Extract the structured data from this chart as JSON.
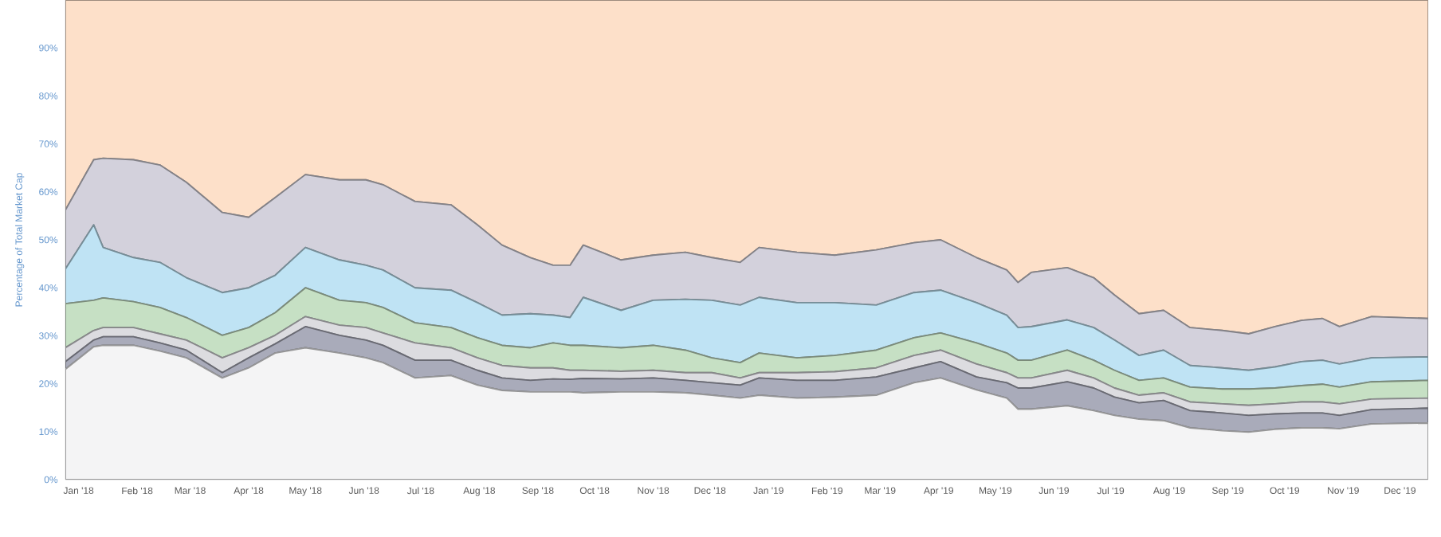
{
  "chart_data": {
    "type": "area",
    "stacked": true,
    "ylabel": "Percentage of Total Market Cap",
    "x": [
      "2017-12-25",
      "2018-01-09",
      "2018-01-14",
      "2018-01-30",
      "2018-02-13",
      "2018-02-27",
      "2018-03-18",
      "2018-04-01",
      "2018-04-15",
      "2018-05-01",
      "2018-05-19",
      "2018-06-02",
      "2018-06-11",
      "2018-06-28",
      "2018-07-17",
      "2018-07-31",
      "2018-08-13",
      "2018-08-28",
      "2018-09-09",
      "2018-09-18",
      "2018-09-25",
      "2018-10-15",
      "2018-11-01",
      "2018-11-18",
      "2018-12-02",
      "2018-12-17",
      "2018-12-27",
      "2019-01-16",
      "2019-02-05",
      "2019-02-27",
      "2019-03-19",
      "2019-04-02",
      "2019-04-21",
      "2019-05-07",
      "2019-05-13",
      "2019-05-20",
      "2019-06-08",
      "2019-06-22",
      "2019-07-03",
      "2019-07-16",
      "2019-07-29",
      "2019-08-12",
      "2019-08-29",
      "2019-09-12",
      "2019-09-26",
      "2019-10-10",
      "2019-10-21",
      "2019-10-30",
      "2019-11-16",
      "2019-12-16"
    ],
    "series": [
      {
        "color": "#f4f4f5",
        "values": [
          23.0,
          27.7,
          28.0,
          28.0,
          26.8,
          25.4,
          21.2,
          23.3,
          26.4,
          27.5,
          26.4,
          25.4,
          24.4,
          21.2,
          21.7,
          19.7,
          18.6,
          18.3,
          18.3,
          18.3,
          18.1,
          18.3,
          18.3,
          18.1,
          17.6,
          17.0,
          17.6,
          17.0,
          17.2,
          17.6,
          20.2,
          21.2,
          18.7,
          17.0,
          14.7,
          14.7,
          15.4,
          14.4,
          13.4,
          12.6,
          12.3,
          10.8,
          10.2,
          9.9,
          10.5,
          10.8,
          10.8,
          10.6,
          11.6,
          11.8
        ]
      },
      {
        "color": "#a9abba",
        "values": [
          1.6,
          1.4,
          1.8,
          1.8,
          1.7,
          1.6,
          1.1,
          2.1,
          1.9,
          4.4,
          3.7,
          3.7,
          3.6,
          3.7,
          3.2,
          3.1,
          2.6,
          2.4,
          2.7,
          2.6,
          3.0,
          2.7,
          2.9,
          2.6,
          2.6,
          2.7,
          3.6,
          3.7,
          3.5,
          3.8,
          3.1,
          3.4,
          2.7,
          3.2,
          4.4,
          4.4,
          5.0,
          4.7,
          3.8,
          3.4,
          4.2,
          3.6,
          3.7,
          3.5,
          3.2,
          3.1,
          3.1,
          2.8,
          3.0,
          3.1
        ]
      },
      {
        "color": "#dcdce0",
        "values": [
          2.9,
          2.0,
          1.9,
          1.9,
          1.9,
          2.1,
          3.1,
          2.1,
          1.8,
          2.1,
          2.1,
          2.6,
          2.6,
          3.6,
          2.6,
          2.6,
          2.6,
          2.6,
          2.3,
          1.9,
          1.7,
          1.6,
          1.6,
          1.6,
          2.1,
          1.5,
          1.1,
          1.6,
          1.8,
          1.9,
          2.6,
          2.4,
          2.7,
          2.1,
          2.1,
          2.1,
          2.4,
          2.1,
          1.9,
          1.6,
          1.6,
          1.8,
          1.9,
          2.1,
          2.1,
          2.3,
          2.3,
          2.4,
          2.2,
          2.1
        ]
      },
      {
        "color": "#c6e0c4",
        "values": [
          9.2,
          6.3,
          6.2,
          5.4,
          5.5,
          4.7,
          4.7,
          4.2,
          4.7,
          6.0,
          5.2,
          5.2,
          5.3,
          4.2,
          4.2,
          4.2,
          4.2,
          4.2,
          5.2,
          5.2,
          5.2,
          4.9,
          5.2,
          4.7,
          3.1,
          3.2,
          4.1,
          3.1,
          3.4,
          3.7,
          3.7,
          3.6,
          4.4,
          4.1,
          3.7,
          3.7,
          4.2,
          3.7,
          3.7,
          3.1,
          3.1,
          3.1,
          3.1,
          3.4,
          3.3,
          3.4,
          3.7,
          3.5,
          3.6,
          3.7
        ]
      },
      {
        "color": "#bfe3f4",
        "values": [
          7.2,
          15.7,
          10.5,
          9.2,
          9.4,
          8.3,
          8.9,
          8.3,
          7.8,
          8.4,
          8.4,
          7.8,
          7.8,
          7.3,
          7.8,
          7.3,
          6.3,
          7.1,
          5.8,
          5.8,
          10.0,
          7.8,
          9.4,
          10.6,
          12.0,
          12.0,
          11.6,
          11.5,
          11.0,
          9.4,
          9.4,
          8.9,
          8.4,
          7.9,
          6.8,
          7.0,
          6.3,
          6.8,
          6.3,
          5.2,
          5.8,
          4.5,
          4.4,
          3.9,
          4.4,
          5.0,
          5.0,
          4.8,
          5.0,
          4.9
        ]
      },
      {
        "color": "#d3d1dc",
        "values": [
          12.3,
          13.6,
          18.6,
          20.4,
          20.3,
          19.9,
          16.7,
          14.7,
          16.2,
          15.2,
          16.7,
          17.8,
          17.8,
          18.0,
          17.8,
          16.2,
          14.6,
          11.7,
          10.4,
          10.9,
          10.9,
          10.5,
          9.4,
          9.8,
          8.9,
          8.9,
          10.4,
          10.5,
          9.9,
          11.5,
          10.4,
          10.5,
          9.4,
          9.4,
          9.4,
          11.3,
          10.9,
          10.4,
          9.4,
          8.7,
          8.3,
          7.9,
          7.8,
          7.6,
          8.4,
          8.6,
          8.7,
          7.8,
          8.6,
          8.0
        ]
      },
      {
        "color": "#fde0c9",
        "values": [
          43.8,
          33.3,
          33.0,
          33.3,
          34.4,
          38.0,
          44.3,
          45.3,
          41.2,
          36.4,
          37.5,
          37.5,
          38.5,
          42.0,
          42.7,
          46.9,
          51.1,
          53.7,
          55.3,
          55.3,
          51.1,
          54.2,
          53.2,
          52.6,
          53.7,
          54.7,
          51.6,
          52.6,
          53.2,
          52.1,
          50.6,
          50.0,
          53.7,
          56.3,
          58.9,
          56.8,
          55.8,
          57.9,
          61.5,
          65.4,
          64.7,
          68.3,
          68.9,
          69.6,
          68.1,
          66.8,
          66.4,
          68.1,
          66.0,
          66.4
        ]
      }
    ],
    "xlim": [
      "2017-12-25",
      "2019-12-16"
    ],
    "xticks": [
      {
        "value": "2018-01-01",
        "label": "Jan '18"
      },
      {
        "value": "2018-02-01",
        "label": "Feb '18"
      },
      {
        "value": "2018-03-01",
        "label": "Mar '18"
      },
      {
        "value": "2018-04-01",
        "label": "Apr '18"
      },
      {
        "value": "2018-05-01",
        "label": "May '18"
      },
      {
        "value": "2018-06-01",
        "label": "Jun '18"
      },
      {
        "value": "2018-07-01",
        "label": "Jul '18"
      },
      {
        "value": "2018-08-01",
        "label": "Aug '18"
      },
      {
        "value": "2018-09-01",
        "label": "Sep '18"
      },
      {
        "value": "2018-10-01",
        "label": "Oct '18"
      },
      {
        "value": "2018-11-01",
        "label": "Nov '18"
      },
      {
        "value": "2018-12-01",
        "label": "Dec '18"
      },
      {
        "value": "2019-01-01",
        "label": "Jan '19"
      },
      {
        "value": "2019-02-01",
        "label": "Feb '19"
      },
      {
        "value": "2019-03-01",
        "label": "Mar '19"
      },
      {
        "value": "2019-04-01",
        "label": "Apr '19"
      },
      {
        "value": "2019-05-01",
        "label": "May '19"
      },
      {
        "value": "2019-06-01",
        "label": "Jun '19"
      },
      {
        "value": "2019-07-01",
        "label": "Jul '19"
      },
      {
        "value": "2019-08-01",
        "label": "Aug '19"
      },
      {
        "value": "2019-09-01",
        "label": "Sep '19"
      },
      {
        "value": "2019-10-01",
        "label": "Oct '19"
      },
      {
        "value": "2019-11-01",
        "label": "Nov '19"
      },
      {
        "value": "2019-12-01",
        "label": "Dec '19"
      }
    ],
    "ylim": [
      0,
      100
    ],
    "yticks": [
      {
        "value": 0,
        "label": "0%"
      },
      {
        "value": 10,
        "label": "10%"
      },
      {
        "value": 20,
        "label": "20%"
      },
      {
        "value": 30,
        "label": "30%"
      },
      {
        "value": 40,
        "label": "40%"
      },
      {
        "value": 50,
        "label": "50%"
      },
      {
        "value": 60,
        "label": "60%"
      },
      {
        "value": 70,
        "label": "70%"
      },
      {
        "value": 80,
        "label": "80%"
      },
      {
        "value": 90,
        "label": "90%"
      }
    ],
    "grid": "y"
  }
}
